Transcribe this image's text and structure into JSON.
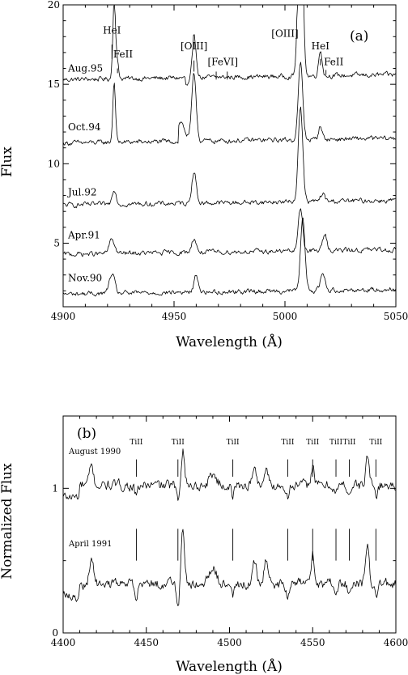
{
  "chart_data": [
    {
      "type": "line",
      "panel_label": "(a)",
      "xlabel": "Wavelength (Å)",
      "ylabel": "Flux",
      "xlim": [
        4900,
        5050
      ],
      "ylim": [
        1,
        20
      ],
      "xticks": [
        4900,
        4950,
        5000,
        5050
      ],
      "yticks": [
        5,
        10,
        15,
        20
      ],
      "series": [
        {
          "name": "Aug.95",
          "baseline": 15.3,
          "label_y": 16.0,
          "lines": [
            [
              4923,
              5.0,
              0.6
            ],
            [
              4924.5,
              1.0,
              0.6
            ],
            [
              4959,
              2.5,
              1.0
            ],
            [
              5007,
              14.0,
              1.0
            ],
            [
              5016,
              1.6,
              0.8
            ]
          ]
        },
        {
          "name": "Oct.94",
          "baseline": 11.3,
          "label_y": 12.3,
          "lines": [
            [
              4923,
              3.8,
              0.6
            ],
            [
              4959,
              4.2,
              1.0
            ],
            [
              5007,
              4.8,
              1.0
            ],
            [
              5016,
              0.9,
              0.8
            ]
          ]
        },
        {
          "name": "Jul.92",
          "baseline": 7.4,
          "label_y": 8.2,
          "lines": [
            [
              4923,
              1.0,
              0.9
            ],
            [
              4959,
              2.0,
              1.0
            ],
            [
              5007,
              6.0,
              1.0
            ],
            [
              5017,
              0.5,
              0.9
            ]
          ]
        },
        {
          "name": "Apr.91",
          "baseline": 4.3,
          "label_y": 5.5,
          "lines": [
            [
              4922,
              0.9,
              1.2
            ],
            [
              4959,
              0.9,
              1.0
            ],
            [
              5007,
              2.7,
              1.0
            ],
            [
              5018,
              1.0,
              1.0
            ]
          ]
        },
        {
          "name": "Nov.90",
          "baseline": 1.8,
          "label_y": 2.8,
          "lines": [
            [
              4922,
              1.2,
              1.2
            ],
            [
              4960,
              1.0,
              1.0
            ],
            [
              5008,
              4.5,
              1.0
            ],
            [
              5017,
              1.1,
              1.0
            ]
          ]
        }
      ],
      "annotations": [
        {
          "text": "HeI",
          "x": 4922,
          "y": 18.2
        },
        {
          "text": "FeII",
          "x": 4927,
          "y": 16.7
        },
        {
          "text": "[OIII]",
          "x": 4959,
          "y": 17.2
        },
        {
          "text": "[FeVI]",
          "x": 4972,
          "y": 16.2
        },
        {
          "text": "[OIII]",
          "x": 5000,
          "y": 18.0
        },
        {
          "text": "HeI",
          "x": 5016,
          "y": 17.2
        },
        {
          "text": "FeII",
          "x": 5022,
          "y": 16.2
        }
      ]
    },
    {
      "type": "line",
      "panel_label": "(b)",
      "xlabel": "Wavelength (Å)",
      "ylabel": "Normalized Flux",
      "xlim": [
        4400,
        4600
      ],
      "ylim": [
        0,
        1.5
      ],
      "xticks": [
        4400,
        4450,
        4500,
        4550,
        4600
      ],
      "yticks": [
        0,
        1
      ],
      "series": [
        {
          "name": "August 1990",
          "baseline": 1.02,
          "label_y": 1.26
        },
        {
          "name": "April 1991",
          "baseline": 0.34,
          "label_y": 0.62
        }
      ],
      "line_label": "TiII",
      "line_positions": [
        4444,
        4469,
        4502,
        4535,
        4550,
        4564,
        4572,
        4588
      ]
    }
  ]
}
